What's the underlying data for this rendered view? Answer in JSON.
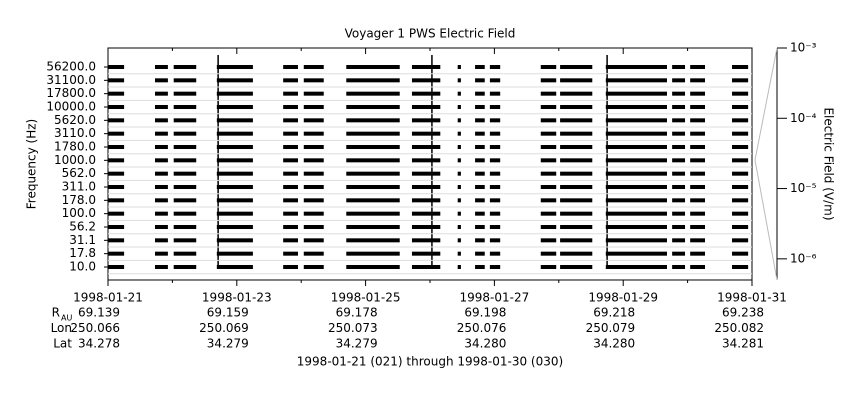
{
  "chart_data": {
    "type": "channel-spectrogram",
    "title": "Voyager 1 PWS Electric Field",
    "ylabel": "Frequency (Hz)",
    "channels": [
      "10.0",
      "17.8",
      "31.1",
      "56.2",
      "100.0",
      "178.0",
      "311.0",
      "562.0",
      "1000.0",
      "1780.0",
      "3110.0",
      "5620.0",
      "10000.0",
      "17800.0",
      "31100.0",
      "56200.0"
    ],
    "xlim": [
      0,
      10
    ],
    "xticks": [
      {
        "value": 0,
        "label": "1998-01-21"
      },
      {
        "value": 2,
        "label": "1998-01-23"
      },
      {
        "value": 4,
        "label": "1998-01-25"
      },
      {
        "value": 6,
        "label": "1998-01-27"
      },
      {
        "value": 8,
        "label": "1998-01-29"
      },
      {
        "value": 10,
        "label": "1998-01-31"
      }
    ],
    "xminorticks": [
      1,
      3,
      5,
      7,
      9
    ],
    "intervals": [
      [
        0,
        0.25
      ],
      [
        0.73,
        0.93
      ],
      [
        1.02,
        1.37
      ],
      [
        1.69,
        2.25
      ],
      [
        2.72,
        2.95
      ],
      [
        3.04,
        3.35
      ],
      [
        3.7,
        4.53
      ],
      [
        4.72,
        5.16
      ],
      [
        5.43,
        5.48
      ],
      [
        5.7,
        5.85
      ],
      [
        5.93,
        6.09
      ],
      [
        6.72,
        6.96
      ],
      [
        7.02,
        7.52
      ],
      [
        7.73,
        8.68
      ],
      [
        8.76,
        8.96
      ],
      [
        9.04,
        9.27
      ],
      [
        9.69,
        9.94
      ]
    ],
    "bursts": [
      1.71,
      5.03,
      7.75
    ],
    "y2label": "Electric Field (V/m)",
    "y2log": true,
    "y2lim": [
      5e-07,
      0.001
    ],
    "y2ticks": [
      {
        "value": 0.001,
        "label": "10⁻³"
      },
      {
        "value": 0.0001,
        "label": "10⁻⁴"
      },
      {
        "value": 1e-05,
        "label": "10⁻⁵"
      },
      {
        "value": 1e-06,
        "label": "10⁻⁶"
      }
    ],
    "ephemeris": [
      {
        "label": "R",
        "subscript": "AU",
        "values": [
          "69.139",
          "69.159",
          "69.178",
          "69.198",
          "69.218",
          "69.238"
        ]
      },
      {
        "label": "Lon",
        "values": [
          "250.066",
          "250.069",
          "250.073",
          "250.076",
          "250.079",
          "250.082"
        ]
      },
      {
        "label": "Lat",
        "values": [
          "34.278",
          "34.279",
          "34.279",
          "34.280",
          "34.280",
          "34.281"
        ]
      }
    ],
    "footer": "1998-01-21 (021) through 1998-01-30 (030)"
  }
}
